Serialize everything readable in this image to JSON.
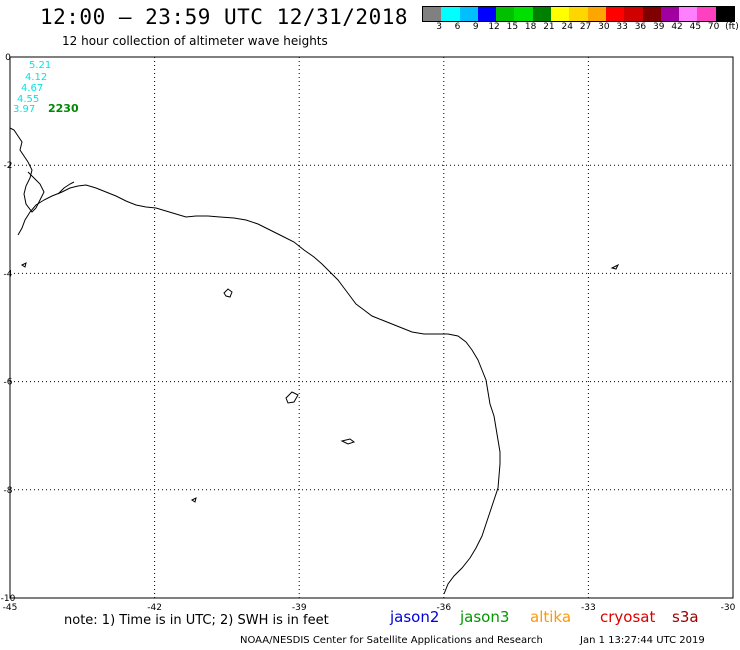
{
  "header": {
    "title": "12:00 – 23:59 UTC 12/31/2018",
    "subtitle": "12 hour collection of altimeter wave heights"
  },
  "legend": {
    "colors": [
      "#808080",
      "#00ffff",
      "#00bfff",
      "#0000ff",
      "#00c000",
      "#00e000",
      "#008000",
      "#ffff00",
      "#ffd700",
      "#ffa500",
      "#ff0000",
      "#d00000",
      "#800000",
      "#a000a0",
      "#ff80ff",
      "#ff40c0",
      "#000000"
    ],
    "labels": [
      "3",
      "6",
      "9",
      "12",
      "15",
      "18",
      "21",
      "24",
      "27",
      "30",
      "33",
      "36",
      "39",
      "42",
      "45",
      "70",
      "(ft)"
    ]
  },
  "map": {
    "lat_ticks": [
      "0",
      "-2",
      "-4",
      "-6",
      "-8",
      "-10"
    ],
    "lon_ticks": [
      "-45",
      "-42",
      "-39",
      "-36",
      "-33",
      "-30"
    ],
    "observations": {
      "values": [
        "5.21",
        "4.12",
        "4.67",
        "4.55",
        "3.97"
      ],
      "time": "2230"
    }
  },
  "note": "note: 1) Time is in UTC; 2) SWH is in feet",
  "satellites": [
    {
      "name": "jason2",
      "color": "#0000dd"
    },
    {
      "name": "jason3",
      "color": "#009900"
    },
    {
      "name": "altika",
      "color": "#ff9900"
    },
    {
      "name": "cryosat",
      "color": "#dd0000"
    },
    {
      "name": "s3a",
      "color": "#990000"
    }
  ],
  "footer": {
    "org": "NOAA/NESDIS Center for Satellite Applications and Research",
    "timestamp": "Jan  1 13:27:44 UTC 2019"
  }
}
